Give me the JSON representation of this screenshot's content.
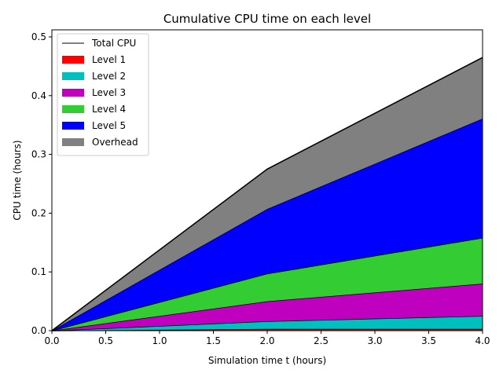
{
  "chart_data": {
    "type": "area",
    "title": "Cumulative CPU time on each level",
    "xlabel": "Simulation time t (hours)",
    "ylabel": "CPU time (hours)",
    "x": [
      0,
      2,
      4
    ],
    "xlim": [
      0,
      4
    ],
    "ylim": [
      0,
      0.512
    ],
    "xticks": [
      "0.0",
      "0.5",
      "1.0",
      "1.5",
      "2.0",
      "2.5",
      "3.0",
      "3.5",
      "4.0"
    ],
    "xtick_values": [
      0,
      0.5,
      1.0,
      1.5,
      2.0,
      2.5,
      3.0,
      3.5,
      4.0
    ],
    "yticks": [
      "0.0",
      "0.1",
      "0.2",
      "0.3",
      "0.4",
      "0.5"
    ],
    "ytick_values": [
      0,
      0.1,
      0.2,
      0.3,
      0.4,
      0.5
    ],
    "stacked": true,
    "series": [
      {
        "name": "Level 1",
        "color": "#ff0000",
        "values": [
          0,
          0.003,
          0.003
        ]
      },
      {
        "name": "Level 2",
        "color": "#00bfbf",
        "values": [
          0,
          0.013,
          0.022
        ]
      },
      {
        "name": "Level 3",
        "color": "#bf00bf",
        "values": [
          0,
          0.034,
          0.055
        ]
      },
      {
        "name": "Level 4",
        "color": "#33cc33",
        "values": [
          0,
          0.047,
          0.078
        ]
      },
      {
        "name": "Level 5",
        "color": "#0000ff",
        "values": [
          0,
          0.11,
          0.203
        ]
      },
      {
        "name": "Overhead",
        "color": "#808080",
        "values": [
          0,
          0.068,
          0.104
        ]
      }
    ],
    "total": {
      "name": "Total CPU",
      "color": "#000000",
      "values": [
        0,
        0.275,
        0.465
      ]
    },
    "legend_position": "top-left",
    "grid": false
  }
}
